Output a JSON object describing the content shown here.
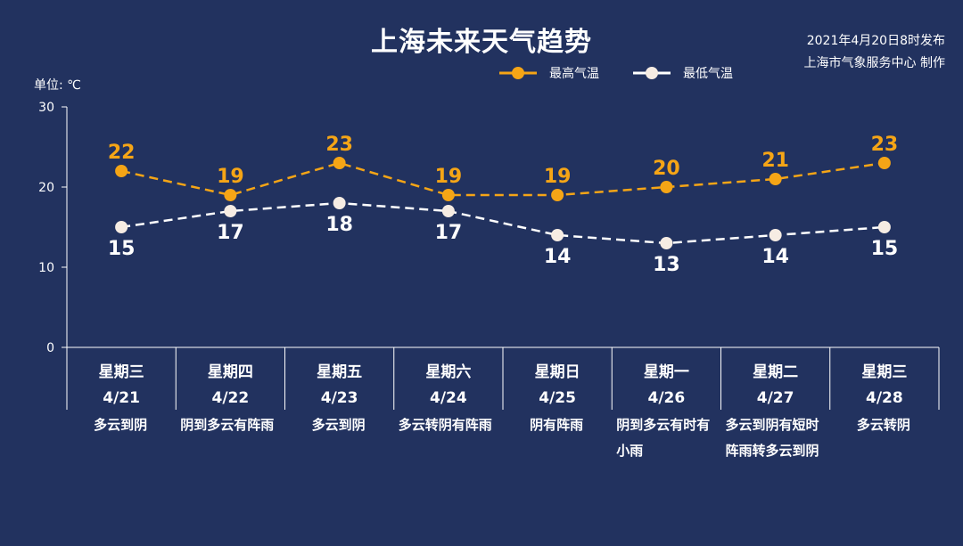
{
  "header": {
    "title": "上海未来天气趋势",
    "publish_time": "2021年4月20日8时发布",
    "publisher": "上海市气象服务中心 制作",
    "unit": "单位: ℃"
  },
  "legend": {
    "high_label": "最高气温",
    "low_label": "最低气温"
  },
  "colors": {
    "background": "#22325f",
    "high": "#f5a516",
    "low": "#ffffff",
    "low_marker": "#f6ece3"
  },
  "chart_data": {
    "type": "line",
    "title": "上海未来天气趋势",
    "ylabel": "单位: ℃",
    "ylim": [
      0,
      30
    ],
    "yticks": [
      0,
      10,
      20,
      30
    ],
    "categories": [
      "星期三",
      "星期四",
      "星期五",
      "星期六",
      "星期日",
      "星期一",
      "星期二",
      "星期三"
    ],
    "dates": [
      "4/21",
      "4/22",
      "4/23",
      "4/24",
      "4/25",
      "4/26",
      "4/27",
      "4/28"
    ],
    "series": [
      {
        "name": "最高气温",
        "values": [
          22,
          19,
          23,
          19,
          19,
          20,
          21,
          23
        ]
      },
      {
        "name": "最低气温",
        "values": [
          15,
          17,
          18,
          17,
          14,
          13,
          14,
          15
        ]
      }
    ],
    "weather": [
      "多云到阴",
      "阴到多云有阵雨",
      "多云到阴",
      "多云转阴有阵雨",
      "阴有阵雨",
      "阴到多云有时有小雨",
      "多云到阴有短时阵雨转多云到阴",
      "多云转阴"
    ]
  }
}
